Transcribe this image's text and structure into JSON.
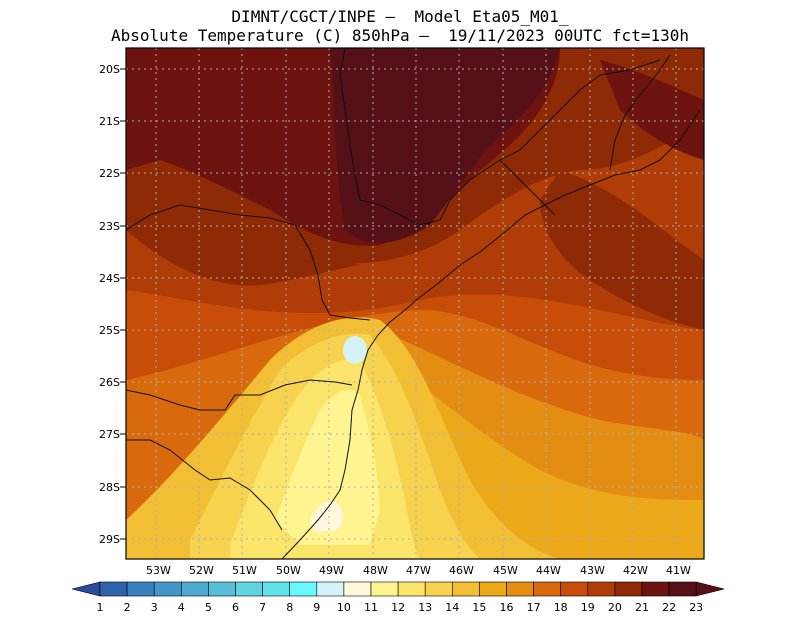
{
  "title": {
    "line1": "DIMNT/CGCT/INPE –  Model Eta05_M01_",
    "line2": "Absolute Temperature (C) 850hPa –  19/11/2023 00UTC fct=130h"
  },
  "map": {
    "lat_labels": [
      "20S",
      "21S",
      "22S",
      "23S",
      "24S",
      "25S",
      "26S",
      "27S",
      "28S",
      "29S"
    ],
    "lon_labels": [
      "53W",
      "52W",
      "51W",
      "50W",
      "49W",
      "48W",
      "47W",
      "46W",
      "45W",
      "44W",
      "43W",
      "42W",
      "41W"
    ],
    "description_features": [
      "temperature-field",
      "coastline",
      "state-borders",
      "dotted-gridlines"
    ]
  },
  "colorbar": {
    "labels": [
      "1",
      "2",
      "3",
      "4",
      "5",
      "6",
      "7",
      "8",
      "9",
      "10",
      "11",
      "12",
      "13",
      "14",
      "15",
      "16",
      "17",
      "18",
      "19",
      "20",
      "21",
      "22",
      "23"
    ],
    "colors": [
      "#2a4a9a",
      "#2f63ae",
      "#3a80be",
      "#4596c8",
      "#4eaacf",
      "#58bfd8",
      "#5fd3e0",
      "#5fe3ea",
      "#66f7ff",
      "#d4f3f8",
      "#fff8dc",
      "#fff48f",
      "#fbe46a",
      "#f7d24e",
      "#f2be33",
      "#eba818",
      "#e38e12",
      "#d8690d",
      "#c84d08",
      "#b03c07",
      "#8f2a06",
      "#6e1410",
      "#551018"
    ]
  }
}
